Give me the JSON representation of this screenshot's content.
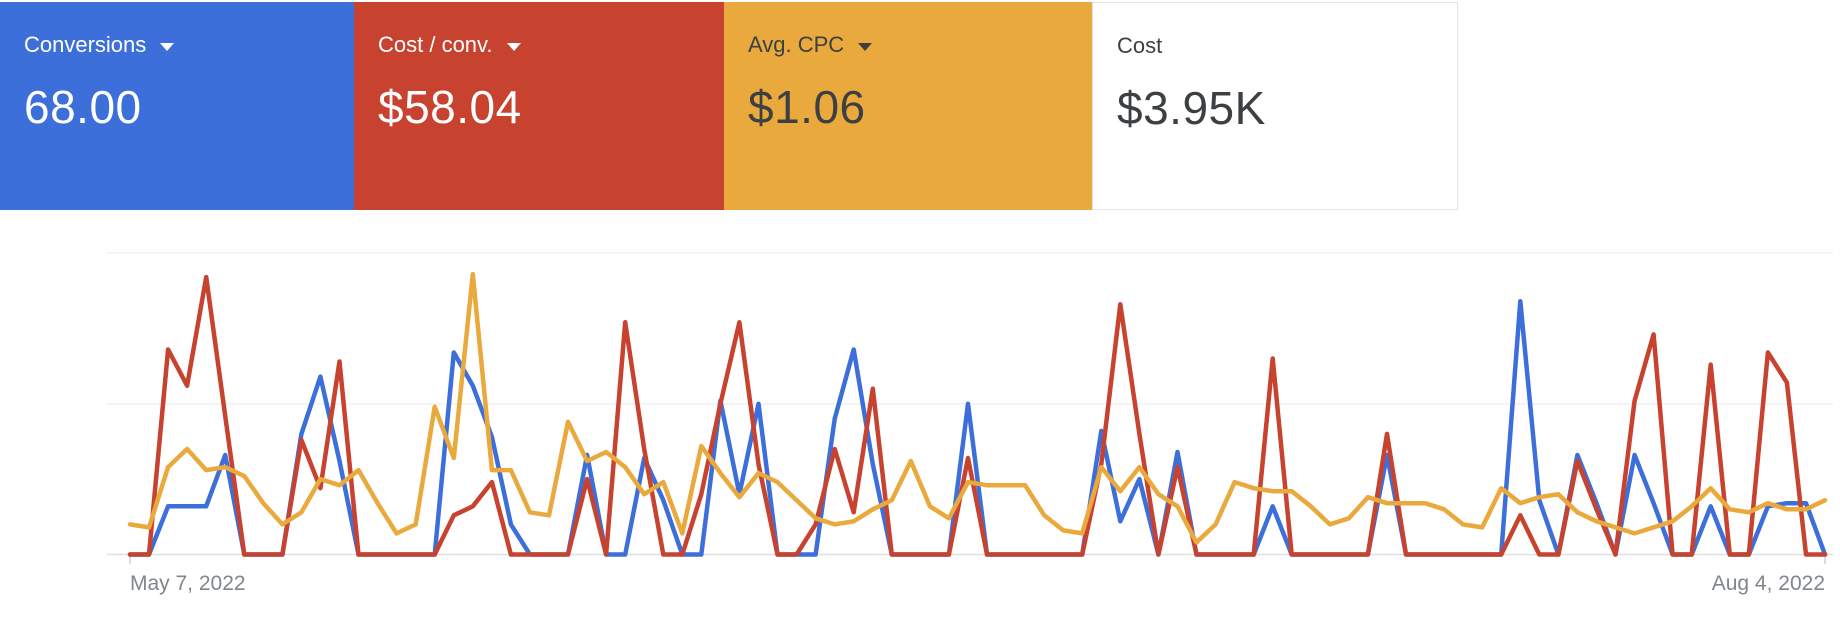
{
  "page": {
    "background": "#ffffff"
  },
  "scorecards": [
    {
      "label": "Conversions",
      "value": "68.00",
      "bg": "#3d6fdb",
      "text_color": "#ffffff",
      "has_dropdown": true,
      "bordered": false
    },
    {
      "label": "Cost / conv.",
      "value": "$58.04",
      "bg": "#c7432f",
      "text_color": "#ffffff",
      "has_dropdown": true,
      "bordered": false
    },
    {
      "label": "Avg. CPC",
      "value": "$1.06",
      "bg": "#eaa93c",
      "text_color": "#3c4043",
      "has_dropdown": true,
      "bordered": false
    },
    {
      "label": "Cost",
      "value": "$3.95K",
      "bg": "#ffffff",
      "text_color": "#3c4043",
      "has_dropdown": false,
      "bordered": true
    }
  ],
  "chart_data": {
    "type": "line",
    "title": "",
    "xlabel": "",
    "ylabel": "",
    "x_start_label": "May 7, 2022",
    "x_end_label": "Aug 4, 2022",
    "x_unit": "day",
    "n_points": 90,
    "grid": "horizontal",
    "legend_position": "none",
    "y_axis_unlabeled": true,
    "y_scale_note": "values normalized: 100 = top gridline, 50 = middle gridline, 0 = baseline",
    "ylim": [
      0,
      100
    ],
    "series": [
      {
        "name": "Conversions",
        "color": "#3d6fdb",
        "values": [
          0,
          0,
          16,
          16,
          16,
          33,
          0,
          0,
          0,
          40,
          59,
          31,
          0,
          0,
          0,
          0,
          0,
          67,
          56,
          39,
          10,
          0,
          0,
          0,
          33,
          0,
          0,
          32,
          18,
          0,
          0,
          51,
          20,
          50,
          0,
          0,
          0,
          45,
          68,
          30,
          0,
          0,
          0,
          0,
          50,
          0,
          0,
          0,
          0,
          0,
          0,
          41,
          11,
          25,
          0,
          34,
          0,
          0,
          0,
          0,
          16,
          0,
          0,
          0,
          0,
          0,
          33,
          0,
          0,
          0,
          0,
          0,
          0,
          84,
          18,
          0,
          33,
          17,
          0,
          33,
          17,
          0,
          0,
          16,
          0,
          0,
          16,
          17,
          17,
          0
        ]
      },
      {
        "name": "Cost / conv.",
        "color": "#c7432f",
        "values": [
          0,
          0,
          68,
          56,
          92,
          46,
          0,
          0,
          0,
          38,
          22,
          64,
          0,
          0,
          0,
          0,
          0,
          13,
          16,
          24,
          0,
          0,
          0,
          0,
          25,
          0,
          77,
          35,
          0,
          0,
          20,
          50,
          77,
          30,
          0,
          0,
          10,
          35,
          14,
          55,
          0,
          0,
          0,
          0,
          32,
          0,
          0,
          0,
          0,
          0,
          0,
          30,
          83,
          40,
          0,
          29,
          0,
          0,
          0,
          0,
          65,
          0,
          0,
          0,
          0,
          0,
          40,
          0,
          0,
          0,
          0,
          0,
          0,
          13,
          0,
          0,
          31,
          15,
          0,
          51,
          73,
          0,
          0,
          63,
          0,
          0,
          67,
          57,
          0,
          0
        ]
      },
      {
        "name": "Avg. CPC",
        "color": "#eaa93c",
        "values": [
          10,
          9,
          29,
          35,
          28,
          29,
          26,
          17,
          10,
          14,
          25,
          23,
          28,
          17,
          7,
          10,
          49,
          32,
          93,
          28,
          28,
          14,
          13,
          44,
          31,
          34,
          29,
          20,
          24,
          7,
          36,
          27,
          19,
          27,
          24,
          18,
          12,
          10,
          11,
          15,
          18,
          31,
          16,
          12,
          24,
          23,
          23,
          23,
          13,
          8,
          7,
          29,
          21,
          29,
          20,
          16,
          4,
          10,
          24,
          22,
          21,
          21,
          16,
          10,
          12,
          19,
          17,
          17,
          17,
          15,
          10,
          9,
          22,
          17,
          19,
          20,
          14,
          11,
          9,
          7,
          9,
          11,
          16,
          22,
          15,
          14,
          17,
          15,
          15,
          18
        ]
      }
    ]
  }
}
